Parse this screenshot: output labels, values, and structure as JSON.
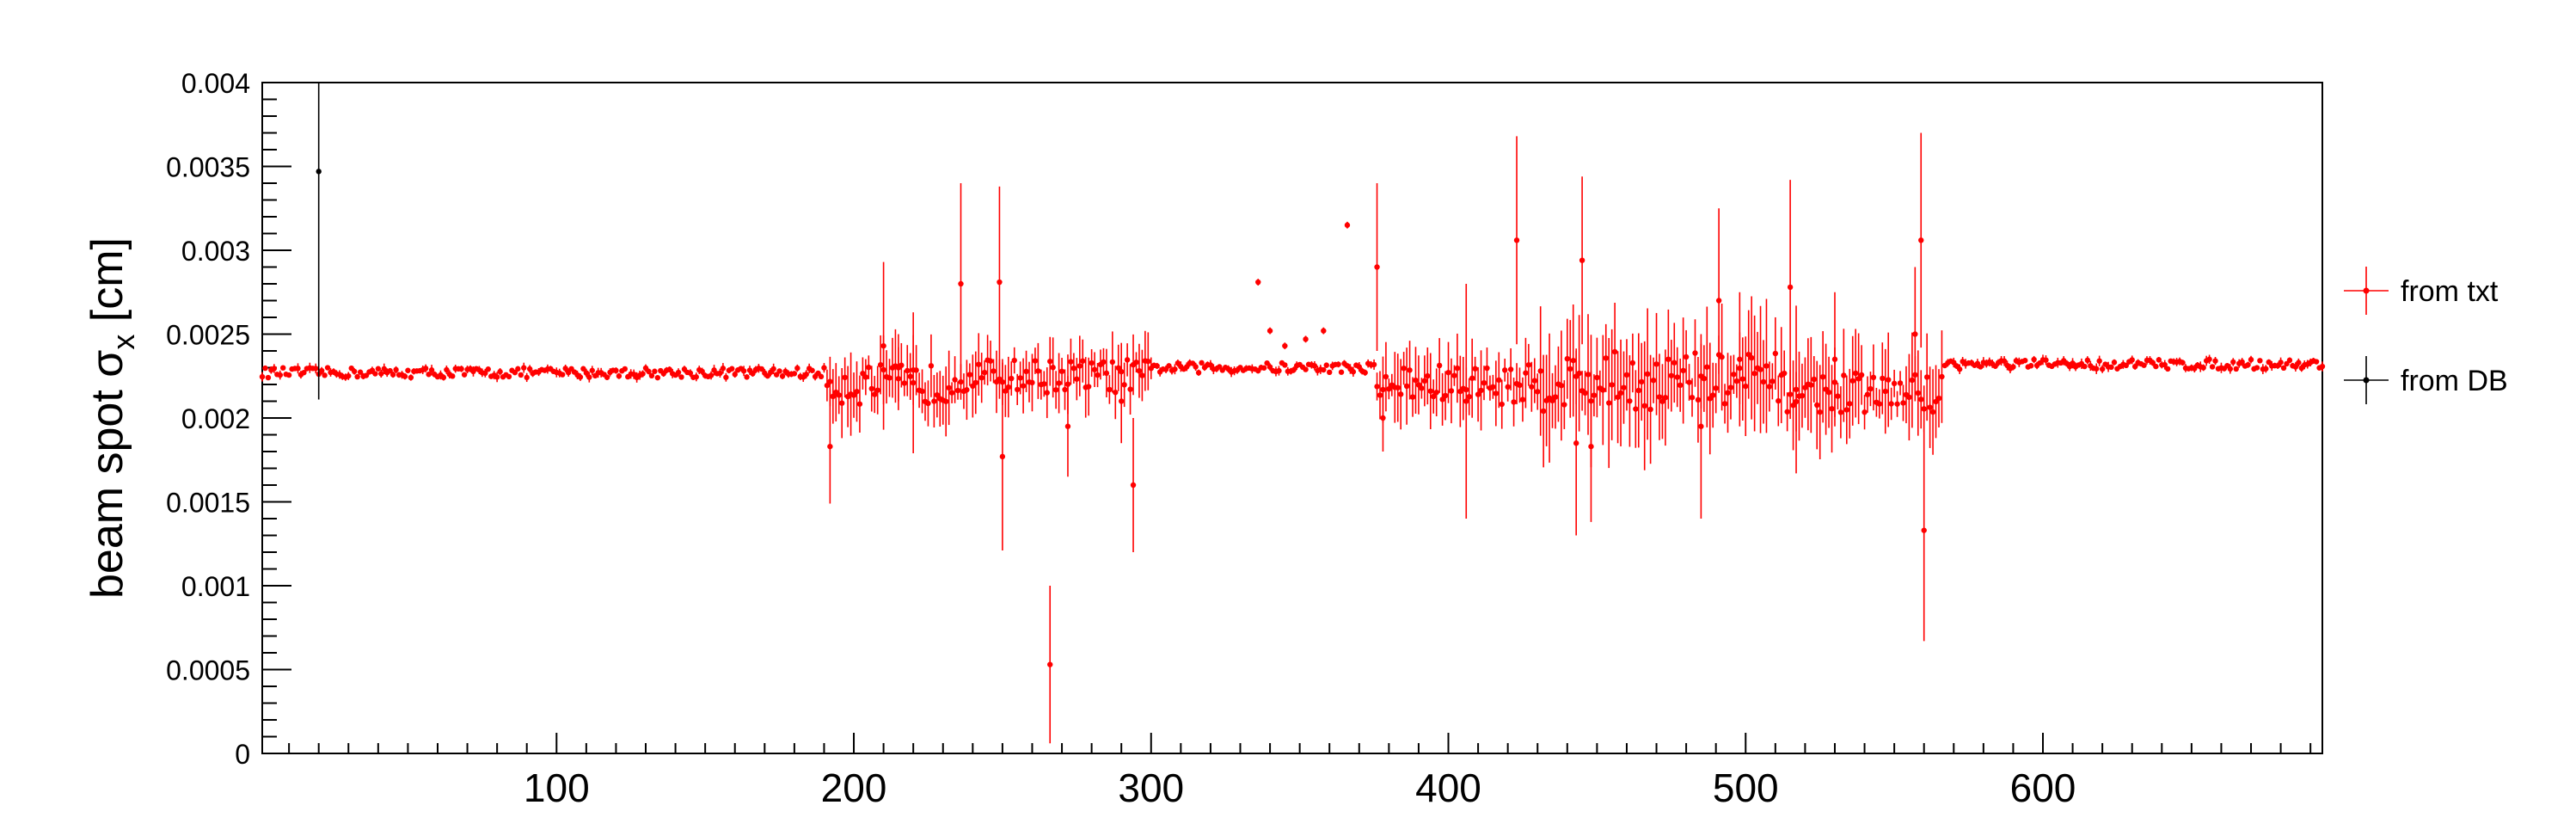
{
  "chart_data": {
    "type": "scatter",
    "title": "",
    "xlabel": "",
    "ylabel_main": "beam spot σ",
    "ylabel_sub": "x",
    "ylabel_unit": " [cm]",
    "xlim": [
      1,
      694
    ],
    "ylim": [
      0,
      0.004
    ],
    "x_ticks": [
      {
        "value": 100,
        "label": "100"
      },
      {
        "value": 200,
        "label": "200"
      },
      {
        "value": 300,
        "label": "300"
      },
      {
        "value": 400,
        "label": "400"
      },
      {
        "value": 500,
        "label": "500"
      },
      {
        "value": 600,
        "label": "600"
      }
    ],
    "y_ticks": [
      {
        "value": 0,
        "label": "0"
      },
      {
        "value": 0.0005,
        "label": "0.0005"
      },
      {
        "value": 0.001,
        "label": "0.001"
      },
      {
        "value": 0.0015,
        "label": "0.0015"
      },
      {
        "value": 0.002,
        "label": "0.002"
      },
      {
        "value": 0.0025,
        "label": "0.0025"
      },
      {
        "value": 0.003,
        "label": "0.003"
      },
      {
        "value": 0.0035,
        "label": "0.0035"
      },
      {
        "value": 0.004,
        "label": "0.004"
      }
    ],
    "grid": false,
    "legend_position": "right",
    "series": [
      {
        "name": "from txt",
        "color": "#ff0000",
        "segments": [
          {
            "x_start": 1,
            "x_end": 190,
            "base": 0.00227,
            "amp": 3e-05,
            "err": 2e-05
          },
          {
            "x_start": 191,
            "x_end": 232,
            "base": 0.0022,
            "amp": 0.00012,
            "err": 0.00016
          },
          {
            "x_start": 233,
            "x_end": 300,
            "base": 0.00225,
            "amp": 0.0001,
            "err": 0.00012
          },
          {
            "x_start": 301,
            "x_end": 375,
            "base": 0.0023,
            "amp": 3e-05,
            "err": 2e-05
          },
          {
            "x_start": 376,
            "x_end": 430,
            "base": 0.0022,
            "amp": 0.00012,
            "err": 0.00015
          },
          {
            "x_start": 431,
            "x_end": 510,
            "base": 0.00222,
            "amp": 0.00018,
            "err": 0.00025
          },
          {
            "x_start": 511,
            "x_end": 566,
            "base": 0.00215,
            "amp": 0.00012,
            "err": 0.00018
          },
          {
            "x_start": 567,
            "x_end": 694,
            "base": 0.00232,
            "amp": 3e-05,
            "err": 2e-05
          }
        ],
        "points": [
          {
            "x": 192,
            "y": 0.00183,
            "err": 0.00034
          },
          {
            "x": 210,
            "y": 0.00243,
            "err": 0.0005
          },
          {
            "x": 215,
            "y": 0.0023,
            "err": 0.0002
          },
          {
            "x": 220,
            "y": 0.00221,
            "err": 0.00042
          },
          {
            "x": 236,
            "y": 0.0028,
            "err": 0.0006
          },
          {
            "x": 249,
            "y": 0.00281,
            "err": 0.00057
          },
          {
            "x": 250,
            "y": 0.00177,
            "err": 0.00056
          },
          {
            "x": 266,
            "y": 0.00053,
            "err": 0.00047
          },
          {
            "x": 272,
            "y": 0.00195,
            "err": 0.0003
          },
          {
            "x": 290,
            "y": 0.0021,
            "err": 0.00025
          },
          {
            "x": 294,
            "y": 0.0016,
            "err": 0.0004
          },
          {
            "x": 336,
            "y": 0.00281,
            "err": 2e-05
          },
          {
            "x": 340,
            "y": 0.00252,
            "err": 2e-05
          },
          {
            "x": 345,
            "y": 0.00243,
            "err": 2e-05
          },
          {
            "x": 352,
            "y": 0.00247,
            "err": 2e-05
          },
          {
            "x": 358,
            "y": 0.00252,
            "err": 2e-05
          },
          {
            "x": 366,
            "y": 0.00315,
            "err": 2e-05
          },
          {
            "x": 376,
            "y": 0.0029,
            "err": 0.0005
          },
          {
            "x": 378,
            "y": 0.002,
            "err": 0.0002
          },
          {
            "x": 406,
            "y": 0.0021,
            "err": 0.0007
          },
          {
            "x": 423,
            "y": 0.00306,
            "err": 0.00062
          },
          {
            "x": 443,
            "y": 0.00185,
            "err": 0.00055
          },
          {
            "x": 445,
            "y": 0.00294,
            "err": 0.0005
          },
          {
            "x": 448,
            "y": 0.00183,
            "err": 0.00045
          },
          {
            "x": 485,
            "y": 0.00195,
            "err": 0.00055
          },
          {
            "x": 491,
            "y": 0.0027,
            "err": 0.00055
          },
          {
            "x": 498,
            "y": 0.00235,
            "err": 0.0004
          },
          {
            "x": 515,
            "y": 0.00278,
            "err": 0.00064
          },
          {
            "x": 517,
            "y": 0.00217,
            "err": 0.0005
          },
          {
            "x": 530,
            "y": 0.00235,
            "err": 0.0004
          },
          {
            "x": 557,
            "y": 0.0025,
            "err": 0.0004
          },
          {
            "x": 559,
            "y": 0.00306,
            "err": 0.00064
          },
          {
            "x": 560,
            "y": 0.00133,
            "err": 0.00066
          }
        ]
      },
      {
        "name": "from DB",
        "color": "#000000",
        "points": [
          {
            "x": 20,
            "y": 0.00347,
            "err": 0.00136
          }
        ]
      }
    ]
  }
}
